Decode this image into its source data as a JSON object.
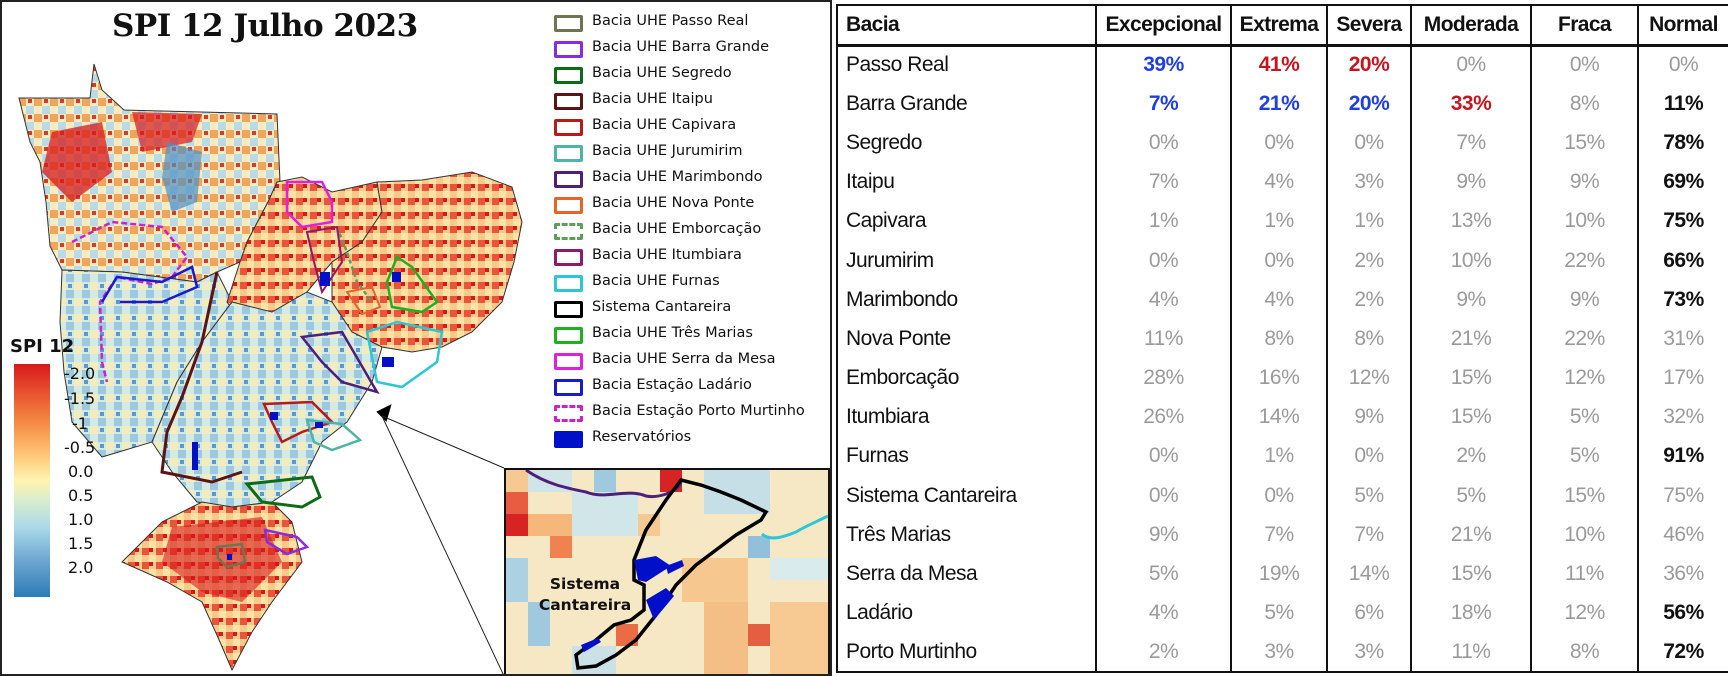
{
  "map": {
    "title": "SPI 12 Julho 2023",
    "scale": {
      "title": "SPI 12",
      "ticks": [
        "-2.0",
        "-1.5",
        "-1",
        "-0.5",
        "0.0",
        "0.5",
        "1.0",
        "1.5",
        "2.0"
      ],
      "colors": {
        "dry": "#d7191c",
        "neutral": "#fff4b0",
        "wet": "#2c7bb6"
      }
    },
    "legend": [
      {
        "label": "Bacia UHE Passo Real",
        "color": "#6e7550",
        "style": "solid"
      },
      {
        "label": "Bacia UHE Barra Grande",
        "color": "#8a2be2",
        "style": "solid"
      },
      {
        "label": "Bacia UHE Segredo",
        "color": "#0b6b16",
        "style": "solid"
      },
      {
        "label": "Bacia UHE Itaipu",
        "color": "#5a1414",
        "style": "solid"
      },
      {
        "label": "Bacia UHE Capivara",
        "color": "#b81a1a",
        "style": "solid"
      },
      {
        "label": "Bacia UHE Jurumirim",
        "color": "#4fb3a6",
        "style": "solid"
      },
      {
        "label": "Bacia UHE Marimbondo",
        "color": "#4b1f7a",
        "style": "solid"
      },
      {
        "label": "Bacia UHE Nova Ponte",
        "color": "#e8622a",
        "style": "solid"
      },
      {
        "label": "Bacia UHE Emborcação",
        "color": "#5e9e5a",
        "style": "dashed"
      },
      {
        "label": "Bacia UHE Itumbiara",
        "color": "#8e1a6a",
        "style": "solid"
      },
      {
        "label": "Bacia UHE Furnas",
        "color": "#2cc7d6",
        "style": "solid"
      },
      {
        "label": "Sistema Cantareira",
        "color": "#000000",
        "style": "solid"
      },
      {
        "label": "Bacia UHE Três Marias",
        "color": "#1fb01f",
        "style": "solid"
      },
      {
        "label": "Bacia UHE Serra da Mesa",
        "color": "#e020e0",
        "style": "solid"
      },
      {
        "label": "Bacia Estação Ladário",
        "color": "#1a1acc",
        "style": "solid"
      },
      {
        "label": "Bacia Estação Porto Murtinho",
        "color": "#cc22cc",
        "style": "dashed"
      },
      {
        "label": "Reservatórios",
        "color": "#0010c8",
        "style": "filled"
      }
    ],
    "inset_label_line1": "Sistema",
    "inset_label_line2": "Cantareira"
  },
  "chart_data": {
    "type": "table",
    "title": "SPI 12 Julho 2023",
    "columns": [
      "Bacia",
      "Excepcional",
      "Extrema",
      "Severa",
      "Moderada",
      "Fraca",
      "Normal"
    ],
    "rows": [
      {
        "bacia": "Passo Real",
        "values": [
          "39%",
          "41%",
          "20%",
          "0%",
          "0%",
          "0%"
        ],
        "styles": [
          "blue",
          "red",
          "red",
          "gray",
          "gray",
          "gray"
        ]
      },
      {
        "bacia": "Barra Grande",
        "values": [
          "7%",
          "21%",
          "20%",
          "33%",
          "8%",
          "11%"
        ],
        "styles": [
          "blue",
          "blue",
          "blue",
          "red",
          "gray",
          "black"
        ]
      },
      {
        "bacia": "Segredo",
        "values": [
          "0%",
          "0%",
          "0%",
          "7%",
          "15%",
          "78%"
        ],
        "styles": [
          "gray",
          "gray",
          "gray",
          "gray",
          "gray",
          "black"
        ]
      },
      {
        "bacia": "Itaipu",
        "values": [
          "7%",
          "4%",
          "3%",
          "9%",
          "9%",
          "69%"
        ],
        "styles": [
          "gray",
          "gray",
          "gray",
          "gray",
          "gray",
          "black"
        ]
      },
      {
        "bacia": "Capivara",
        "values": [
          "1%",
          "1%",
          "1%",
          "13%",
          "10%",
          "75%"
        ],
        "styles": [
          "gray",
          "gray",
          "gray",
          "gray",
          "gray",
          "black"
        ]
      },
      {
        "bacia": "Jurumirim",
        "values": [
          "0%",
          "0%",
          "2%",
          "10%",
          "22%",
          "66%"
        ],
        "styles": [
          "gray",
          "gray",
          "gray",
          "gray",
          "gray",
          "black"
        ]
      },
      {
        "bacia": "Marimbondo",
        "values": [
          "4%",
          "4%",
          "2%",
          "9%",
          "9%",
          "73%"
        ],
        "styles": [
          "gray",
          "gray",
          "gray",
          "gray",
          "gray",
          "black"
        ]
      },
      {
        "bacia": "Nova Ponte",
        "values": [
          "11%",
          "8%",
          "8%",
          "21%",
          "22%",
          "31%"
        ],
        "styles": [
          "gray",
          "gray",
          "gray",
          "gray",
          "gray",
          "gray"
        ]
      },
      {
        "bacia": "Emborcação",
        "values": [
          "28%",
          "16%",
          "12%",
          "15%",
          "12%",
          "17%"
        ],
        "styles": [
          "gray",
          "gray",
          "gray",
          "gray",
          "gray",
          "gray"
        ]
      },
      {
        "bacia": "Itumbiara",
        "values": [
          "26%",
          "14%",
          "9%",
          "15%",
          "5%",
          "32%"
        ],
        "styles": [
          "gray",
          "gray",
          "gray",
          "gray",
          "gray",
          "gray"
        ]
      },
      {
        "bacia": "Furnas",
        "values": [
          "0%",
          "1%",
          "0%",
          "2%",
          "5%",
          "91%"
        ],
        "styles": [
          "gray",
          "gray",
          "gray",
          "gray",
          "gray",
          "black"
        ]
      },
      {
        "bacia": "Sistema Cantareira",
        "values": [
          "0%",
          "0%",
          "5%",
          "5%",
          "15%",
          "75%"
        ],
        "styles": [
          "gray",
          "gray",
          "gray",
          "gray",
          "gray",
          "gray"
        ]
      },
      {
        "bacia": "Três Marias",
        "values": [
          "9%",
          "7%",
          "7%",
          "21%",
          "10%",
          "46%"
        ],
        "styles": [
          "gray",
          "gray",
          "gray",
          "gray",
          "gray",
          "gray"
        ]
      },
      {
        "bacia": "Serra da Mesa",
        "values": [
          "5%",
          "19%",
          "14%",
          "15%",
          "11%",
          "36%"
        ],
        "styles": [
          "gray",
          "gray",
          "gray",
          "gray",
          "gray",
          "gray"
        ]
      },
      {
        "bacia": "Ladário",
        "values": [
          "4%",
          "5%",
          "6%",
          "18%",
          "12%",
          "56%"
        ],
        "styles": [
          "gray",
          "gray",
          "gray",
          "gray",
          "gray",
          "black"
        ]
      },
      {
        "bacia": "Porto Murtinho",
        "values": [
          "2%",
          "3%",
          "3%",
          "11%",
          "8%",
          "72%"
        ],
        "styles": [
          "gray",
          "gray",
          "gray",
          "gray",
          "gray",
          "black"
        ]
      }
    ],
    "style_colors": {
      "blue": "#1f3fe0",
      "red": "#c8141e",
      "black": "#111111",
      "gray": "#9a9a9a"
    }
  }
}
